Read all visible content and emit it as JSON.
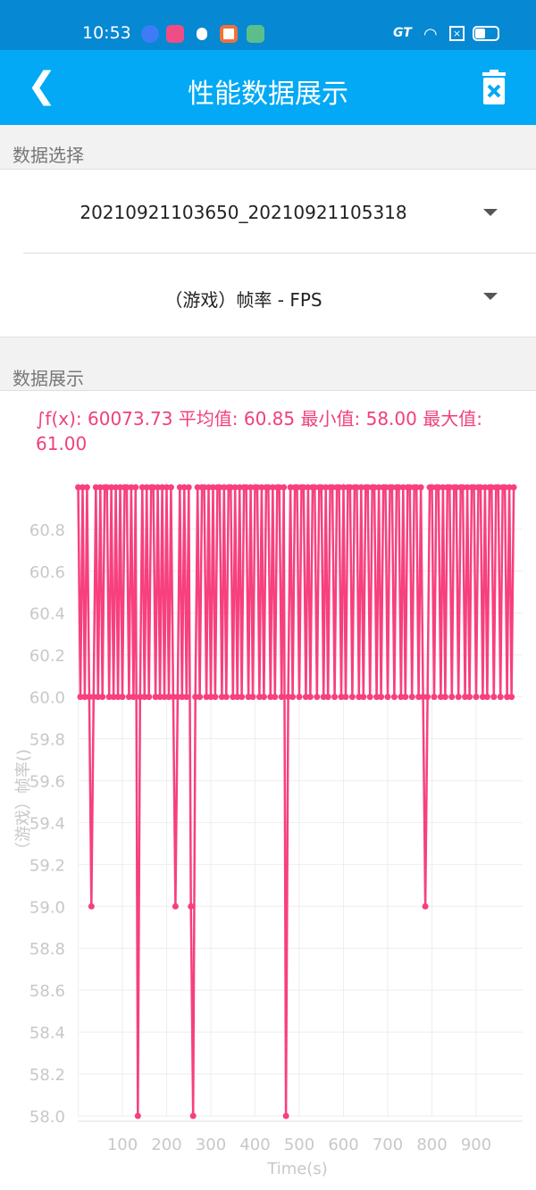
{
  "status_bar": {
    "time": "10:53"
  },
  "header": {
    "title": "性能数据展示",
    "back_icon": "chevron-left-icon",
    "delete_icon": "trash-x-icon"
  },
  "data_select": {
    "label": "数据选择",
    "file_value": "20210921103650_20210921105318",
    "metric_value": "（游戏）帧率 - FPS"
  },
  "data_display": {
    "label": "数据展示",
    "stats": "∫f(x): 60073.73 平均值: 60.85 最小值: 58.00 最大值: 61.00"
  },
  "colors": {
    "accent": "#03a9f4",
    "status_bar": "#0788d2",
    "series": "#f7407d"
  },
  "chart_data": {
    "type": "line",
    "xlabel": "Time(s)",
    "ylabel": "（游戏）帧率()",
    "xlim": [
      0,
      990
    ],
    "ylim": [
      58.0,
      61.0
    ],
    "x_ticks": [
      100,
      200,
      300,
      400,
      500,
      600,
      700,
      800,
      900
    ],
    "y_ticks": [
      "58.0",
      "58.2",
      "58.4",
      "58.6",
      "58.8",
      "59.0",
      "59.2",
      "59.4",
      "59.6",
      "59.8",
      "60.0",
      "60.2",
      "60.4",
      "60.6",
      "60.8"
    ],
    "grid": true,
    "x_start": 0,
    "x_step": 5,
    "values": [
      61,
      60,
      61,
      60,
      61,
      60,
      59,
      60,
      61,
      60,
      61,
      60,
      61,
      61,
      60,
      61,
      60,
      61,
      60,
      61,
      60,
      61,
      61,
      60,
      61,
      60,
      61,
      58,
      60,
      61,
      60,
      61,
      60,
      61,
      61,
      60,
      61,
      60,
      61,
      60,
      61,
      60,
      61,
      60,
      59,
      60,
      61,
      60,
      61,
      60,
      61,
      59,
      58,
      60,
      61,
      60,
      61,
      61,
      60,
      61,
      60,
      61,
      60,
      61,
      61,
      60,
      61,
      60,
      61,
      61,
      60,
      61,
      60,
      61,
      60,
      61,
      61,
      60,
      61,
      60,
      61,
      61,
      60,
      61,
      60,
      61,
      61,
      60,
      61,
      60,
      61,
      61,
      60,
      61,
      58,
      60,
      61,
      60,
      61,
      61,
      60,
      61,
      61,
      60,
      61,
      60,
      61,
      61,
      60,
      61,
      61,
      60,
      61,
      60,
      61,
      61,
      60,
      61,
      61,
      60,
      61,
      60,
      61,
      61,
      60,
      61,
      61,
      60,
      61,
      60,
      61,
      61,
      60,
      61,
      61,
      60,
      61,
      60,
      61,
      61,
      60,
      61,
      61,
      60,
      61,
      61,
      60,
      61,
      60,
      61,
      61,
      60,
      61,
      61,
      60,
      61,
      60,
      59,
      60,
      61,
      61,
      60,
      61,
      61,
      60,
      61,
      60,
      61,
      61,
      60,
      61,
      61,
      60,
      61,
      61,
      60,
      61,
      60,
      61,
      61,
      60,
      61,
      61,
      60,
      61,
      60,
      61,
      61,
      60,
      61,
      61,
      60,
      61,
      61,
      60,
      61,
      60,
      61
    ]
  }
}
